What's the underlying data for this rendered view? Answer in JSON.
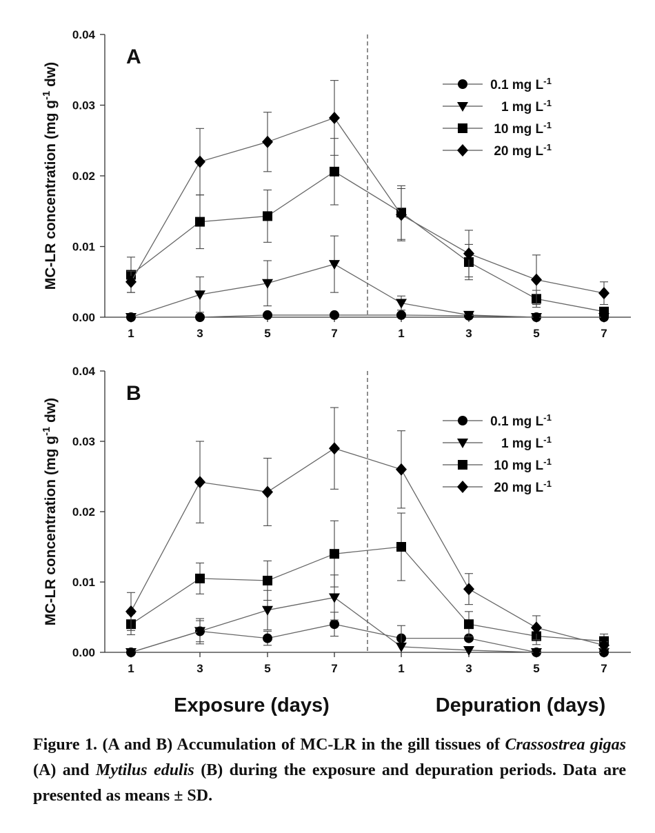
{
  "chart_data": [
    {
      "type": "line",
      "panel_label": "A",
      "ylabel": "MC-LR concentration (mg g-1 dw)",
      "ylim": [
        0,
        0.04
      ],
      "yticks": [
        "0.00",
        "0.01",
        "0.02",
        "0.03",
        "0.04"
      ],
      "x_tick_labels": [
        "1",
        "3",
        "5",
        "7",
        "1",
        "3",
        "5",
        "7"
      ],
      "phase_divider": "dashed line between exposure day 7 and depuration day 1",
      "legend_position": "top-right",
      "series": [
        {
          "name": "0.1 mg L-1",
          "marker": "circle",
          "values": [
            0.0,
            0.0,
            0.0003,
            0.0003,
            0.0003,
            0.0002,
            0.0,
            0.0
          ],
          "errors": [
            0,
            0,
            0,
            0,
            0,
            0,
            0,
            0
          ]
        },
        {
          "name": "1 mg L-1",
          "marker": "triangle-down",
          "values": [
            0.0,
            0.0032,
            0.0048,
            0.0075,
            0.002,
            0.0003,
            0.0,
            0.0
          ],
          "errors": [
            0,
            0.0025,
            0.0032,
            0.004,
            0.001,
            0,
            0,
            0
          ]
        },
        {
          "name": "10 mg L-1",
          "marker": "square",
          "values": [
            0.006,
            0.0135,
            0.0143,
            0.0206,
            0.0148,
            0.0078,
            0.0026,
            0.0008
          ],
          "errors": [
            0.0025,
            0.0038,
            0.0037,
            0.0047,
            0.0038,
            0.0025,
            0.0012,
            0.0005
          ]
        },
        {
          "name": "20 mg L-1",
          "marker": "diamond",
          "values": [
            0.005,
            0.022,
            0.0248,
            0.0282,
            0.0145,
            0.009,
            0.0053,
            0.0034
          ],
          "errors": [
            0.0015,
            0.0047,
            0.0042,
            0.0053,
            0.0037,
            0.0033,
            0.0035,
            0.0016
          ]
        }
      ]
    },
    {
      "type": "line",
      "panel_label": "B",
      "ylabel": "MC-LR concentration (mg g-1 dw)",
      "ylim": [
        0,
        0.04
      ],
      "yticks": [
        "0.00",
        "0.01",
        "0.02",
        "0.03",
        "0.04"
      ],
      "x_tick_labels": [
        "1",
        "3",
        "5",
        "7",
        "1",
        "3",
        "5",
        "7"
      ],
      "phase_divider": "dashed line between exposure day 7 and depuration day 1",
      "legend_position": "top-right",
      "series": [
        {
          "name": "0.1 mg L-1",
          "marker": "circle",
          "values": [
            0.0,
            0.003,
            0.002,
            0.004,
            0.002,
            0.002,
            0.0,
            0.0
          ],
          "errors": [
            0,
            0.0018,
            0.001,
            0.0017,
            0,
            0,
            0,
            0
          ]
        },
        {
          "name": "1 mg L-1",
          "marker": "triangle-down",
          "values": [
            0.0,
            0.003,
            0.006,
            0.0078,
            0.0008,
            0.0003,
            0.0,
            0.0
          ],
          "errors": [
            0,
            0.0015,
            0.0028,
            0.0032,
            0.003,
            0,
            0,
            0
          ]
        },
        {
          "name": "10 mg L-1",
          "marker": "square",
          "values": [
            0.004,
            0.0105,
            0.0102,
            0.014,
            0.015,
            0.004,
            0.0023,
            0.0016
          ],
          "errors": [
            0.0015,
            0.0022,
            0.0028,
            0.0047,
            0.0048,
            0.0018,
            0.0012,
            0.001
          ]
        },
        {
          "name": "20 mg L-1",
          "marker": "diamond",
          "values": [
            0.0058,
            0.0242,
            0.0228,
            0.029,
            0.026,
            0.009,
            0.0035,
            0.001
          ],
          "errors": [
            0.0027,
            0.0058,
            0.0048,
            0.0058,
            0.0055,
            0.0022,
            0.0017,
            0.0005
          ]
        }
      ]
    }
  ],
  "xgroup_labels": {
    "exposure": "Exposure (days)",
    "depuration": "Depuration (days)"
  },
  "caption": {
    "lead": "Figure 1. (A and B) Accumulation of MC-LR in the gill tissues of ",
    "species1": "Crassostrea gigas",
    "mid1": " (A) and ",
    "species2": "Mytilus edulis",
    "tail": " (B) during the exposure and depuration periods. Data are presented as means ± SD."
  }
}
